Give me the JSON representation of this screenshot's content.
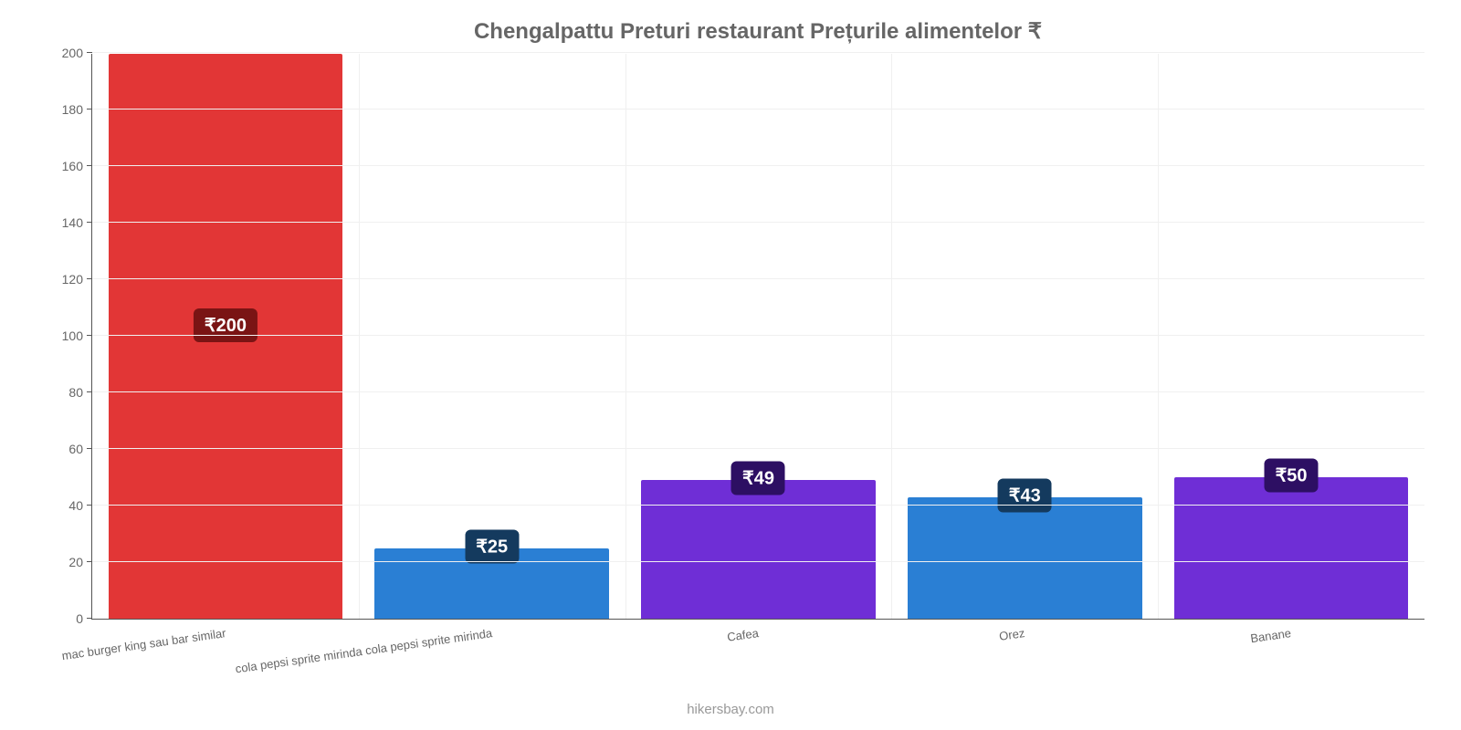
{
  "chart": {
    "type": "bar",
    "title": "Chengalpattu Preturi restaurant Prețurile alimentelor ₹",
    "title_fontsize": 24,
    "title_color": "#666666",
    "background_color": "#ffffff",
    "grid_color": "#f0f0f0",
    "axis_color": "#555555",
    "label_color": "#666666",
    "label_fontsize": 13,
    "tick_fontsize": 14,
    "value_badge_fontsize": 20,
    "ylim": [
      0,
      200
    ],
    "ytick_step": 20,
    "yticks": [
      0,
      20,
      40,
      60,
      80,
      100,
      120,
      140,
      160,
      180,
      200
    ],
    "yticklabels": [
      "0",
      "20",
      "40",
      "60",
      "80",
      "100",
      "120",
      "140",
      "160",
      "180",
      "200"
    ],
    "categories": [
      "mac burger king sau bar similar",
      "cola pepsi sprite mirinda cola pepsi sprite mirinda",
      "Cafea",
      "Orez",
      "Banane"
    ],
    "values": [
      200,
      25,
      49,
      43,
      50
    ],
    "value_labels": [
      "₹200",
      "₹25",
      "₹49",
      "₹43",
      "₹50"
    ],
    "bar_colors": [
      "#e23636",
      "#2a7fd4",
      "#6f2ed6",
      "#2a7fd4",
      "#6f2ed6"
    ],
    "badge_colors": [
      "#7a1414",
      "#143a5e",
      "#2d0f63",
      "#143a5e",
      "#2d0f63"
    ],
    "bar_width": 0.88,
    "attribution": "hikersbay.com"
  }
}
